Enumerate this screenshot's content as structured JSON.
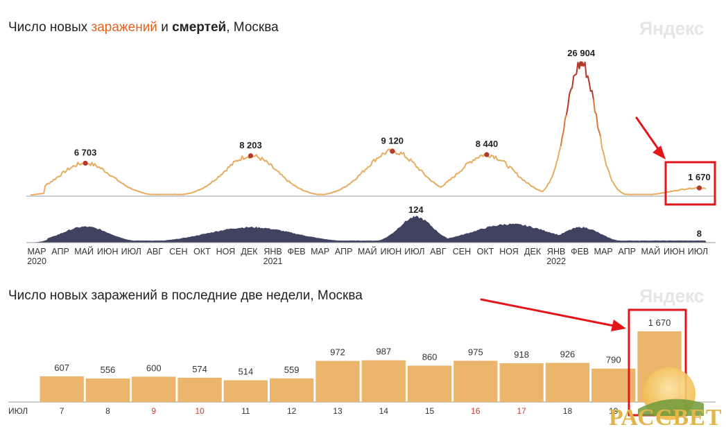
{
  "top_chart": {
    "title_part1": "Число новых ",
    "title_infections": "заражений",
    "title_part2": " и ",
    "title_deaths": "смертей",
    "title_part3": ", Москва",
    "logo": "Яндекс"
  },
  "bottom_chart": {
    "title": "Число новых заражений в последние две недели, Москва",
    "logo": "Яндекс"
  },
  "watermark": "РАССВЕТ",
  "colors": {
    "infections_line": "#e8ac62",
    "infections_peak": "#b23a2a",
    "deaths_area": "#3f4360",
    "bar": "#ebb66b",
    "highlight": "#e3151a",
    "weekend": "#d8342b"
  },
  "chart_data": [
    {
      "type": "line",
      "series": [
        {
          "name": "заражений",
          "peaks": [
            {
              "date": "2020-05",
              "value": 6703,
              "label": "6 703"
            },
            {
              "date": "2020-12",
              "value": 8203,
              "label": "8 203"
            },
            {
              "date": "2021-06",
              "value": 9120,
              "label": "9 120"
            },
            {
              "date": "2021-10",
              "value": 8440,
              "label": "8 440"
            },
            {
              "date": "2022-02",
              "value": 26904,
              "label": "26 904"
            },
            {
              "date": "2022-07",
              "value": 1670,
              "label": "1 670"
            }
          ]
        },
        {
          "name": "смертей",
          "type": "area",
          "peaks": [
            {
              "date": "2021-07",
              "value": 124,
              "label": "124"
            },
            {
              "date": "2022-07",
              "value": 8,
              "label": "8"
            }
          ]
        }
      ],
      "x_ticks": [
        "МАР",
        "АПР",
        "МАЙ",
        "ИЮН",
        "ИЮЛ",
        "АВГ",
        "СЕН",
        "ОКТ",
        "НОЯ",
        "ДЕК",
        "ЯНВ",
        "ФЕВ",
        "МАР",
        "АПР",
        "МАЙ",
        "ИЮН",
        "ИЮЛ",
        "АВГ",
        "СЕН",
        "ОКТ",
        "НОЯ",
        "ДЕК",
        "ЯНВ",
        "ФЕВ",
        "МАР",
        "АПР",
        "МАЙ",
        "ИЮН",
        "ИЮЛ"
      ],
      "year_ticks": [
        {
          "month_index": 0,
          "label": "2020"
        },
        {
          "month_index": 10,
          "label": "2021"
        },
        {
          "month_index": 22,
          "label": "2022"
        }
      ],
      "x_range": [
        "2020-03",
        "2022-07"
      ],
      "grid": false,
      "legend": "none"
    },
    {
      "type": "bar",
      "x_prefix": "ИЮЛ",
      "categories": [
        "7",
        "8",
        "9",
        "10",
        "11",
        "12",
        "13",
        "14",
        "15",
        "16",
        "17",
        "18",
        "19",
        "20"
      ],
      "values": [
        607,
        556,
        600,
        574,
        514,
        559,
        972,
        987,
        860,
        975,
        918,
        926,
        790,
        1670
      ],
      "labels": [
        "607",
        "556",
        "600",
        "574",
        "514",
        "559",
        "972",
        "987",
        "860",
        "975",
        "918",
        "926",
        "790",
        "1 670"
      ],
      "weekend": [
        false,
        false,
        true,
        true,
        false,
        false,
        false,
        false,
        false,
        true,
        true,
        false,
        false,
        false
      ],
      "ylim": [
        0,
        1800
      ],
      "grid": false,
      "legend": "none"
    }
  ]
}
